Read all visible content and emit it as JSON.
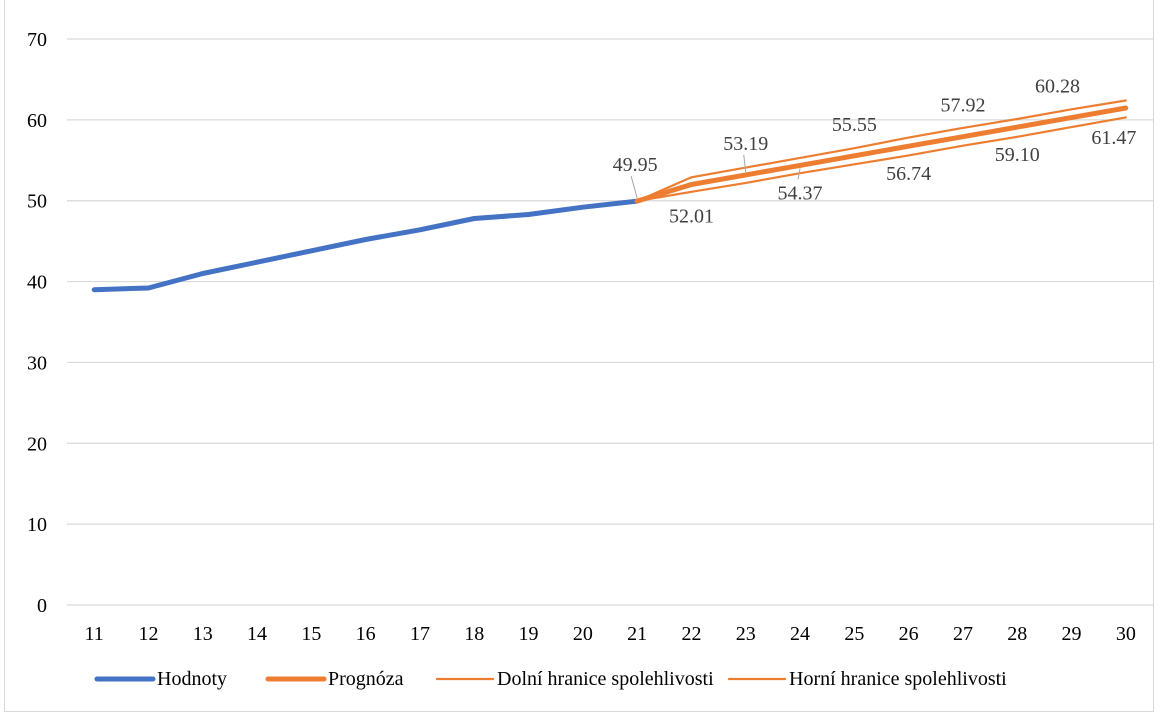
{
  "chart_data": {
    "type": "line",
    "title": "",
    "xlabel": "",
    "ylabel": "",
    "x": [
      11,
      12,
      13,
      14,
      15,
      16,
      17,
      18,
      19,
      20,
      21,
      22,
      23,
      24,
      25,
      26,
      27,
      28,
      29,
      30
    ],
    "ylim": [
      0,
      70
    ],
    "yticks": [
      0,
      10,
      20,
      30,
      40,
      50,
      60,
      70
    ],
    "grid": true,
    "legend_position": "bottom",
    "series": [
      {
        "name": "Hodnoty",
        "color": "#4472C4",
        "x": [
          11,
          12,
          13,
          14,
          15,
          16,
          17,
          18,
          19,
          20,
          21
        ],
        "y": [
          39.0,
          39.2,
          41.0,
          42.4,
          43.8,
          45.2,
          46.4,
          47.8,
          48.3,
          49.2,
          49.95
        ]
      },
      {
        "name": "Prognóza",
        "color": "#ED7D31",
        "x": [
          21,
          22,
          23,
          24,
          25,
          26,
          27,
          28,
          29,
          30
        ],
        "y": [
          49.95,
          52.01,
          53.19,
          54.37,
          55.55,
          56.74,
          57.92,
          59.1,
          60.28,
          61.47
        ]
      },
      {
        "name": "Dolní hranice spolehlivosti",
        "color": "#ED7D31",
        "x": [
          21,
          22,
          23,
          24,
          25,
          26,
          27,
          28,
          29,
          30
        ],
        "y": [
          49.95,
          51.1,
          52.2,
          53.4,
          54.5,
          55.6,
          56.8,
          57.9,
          59.1,
          60.3
        ]
      },
      {
        "name": "Horní hranice spolehlivosti",
        "color": "#ED7D31",
        "x": [
          21,
          22,
          23,
          24,
          25,
          26,
          27,
          28,
          29,
          30
        ],
        "y": [
          49.95,
          52.9,
          54.1,
          55.3,
          56.5,
          57.8,
          59.0,
          60.1,
          61.3,
          62.4
        ]
      }
    ],
    "data_labels": [
      {
        "x": 21,
        "y": 49.95,
        "text": "49.95",
        "placement": "above"
      },
      {
        "x": 22,
        "y": 52.01,
        "text": "52.01",
        "placement": "below"
      },
      {
        "x": 23,
        "y": 53.19,
        "text": "53.19",
        "placement": "above"
      },
      {
        "x": 24,
        "y": 54.37,
        "text": "54.37",
        "placement": "below"
      },
      {
        "x": 25,
        "y": 55.55,
        "text": "55.55",
        "placement": "above"
      },
      {
        "x": 26,
        "y": 56.74,
        "text": "56.74",
        "placement": "below"
      },
      {
        "x": 27,
        "y": 57.92,
        "text": "57.92",
        "placement": "above"
      },
      {
        "x": 28,
        "y": 59.1,
        "text": "59.10",
        "placement": "below"
      },
      {
        "x": 29,
        "y": 60.28,
        "text": "60.28",
        "placement": "above"
      },
      {
        "x": 30,
        "y": 61.47,
        "text": "61.47",
        "placement": "below"
      }
    ]
  }
}
